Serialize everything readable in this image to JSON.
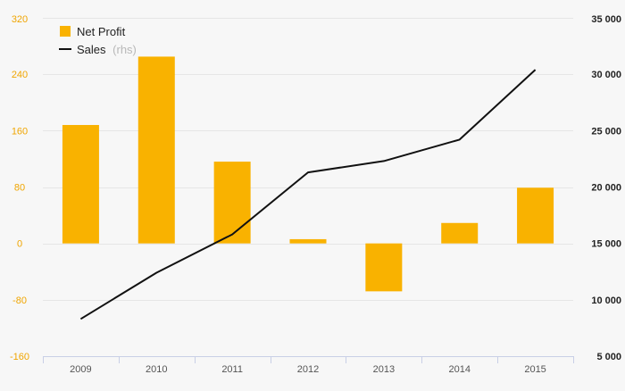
{
  "chart_data": {
    "type": "bar",
    "categories": [
      "2009",
      "2010",
      "2011",
      "2012",
      "2013",
      "2014",
      "2015"
    ],
    "series": [
      {
        "name": "Net Profit",
        "type": "bar",
        "axis": "left",
        "color": "#f9b200",
        "values": [
          168,
          265,
          116,
          6,
          -68,
          29,
          79
        ]
      },
      {
        "name": "Sales",
        "type": "line",
        "axis": "right",
        "color": "#111111",
        "values": [
          8300,
          12400,
          15800,
          21300,
          22300,
          24200,
          30400
        ]
      }
    ],
    "left_axis": {
      "min": -160,
      "max": 320,
      "ticks": [
        320,
        240,
        160,
        80,
        0,
        -80,
        -160
      ],
      "tick_labels": [
        "320",
        "240",
        "160",
        "80",
        "0",
        "-80",
        "-160"
      ],
      "color": "#f0a500"
    },
    "right_axis": {
      "min": 5000,
      "max": 35000,
      "ticks": [
        35000,
        30000,
        25000,
        20000,
        15000,
        10000,
        5000
      ],
      "tick_labels": [
        "35 000",
        "30 000",
        "25 000",
        "20 000",
        "15 000",
        "10 000",
        "5 000"
      ],
      "color": "#222222"
    },
    "legend": {
      "position": "top-left",
      "items": [
        {
          "label": "Net Profit",
          "suffix": ""
        },
        {
          "label": "Sales",
          "suffix": "(rhs)"
        }
      ]
    },
    "grid": true,
    "title": "",
    "xlabel": "",
    "ylabel": ""
  }
}
